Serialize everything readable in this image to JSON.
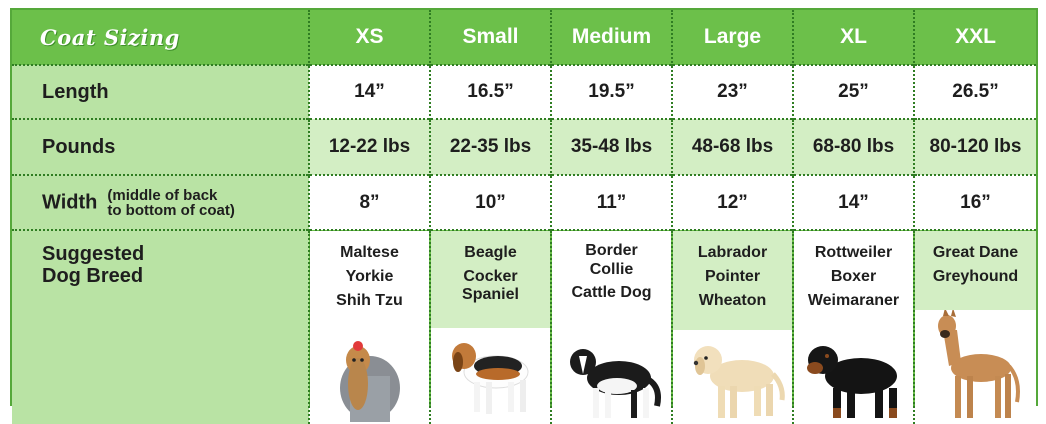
{
  "title": "Coat Sizing",
  "sizes": [
    "XS",
    "Small",
    "Medium",
    "Large",
    "XL",
    "XXL"
  ],
  "rows": {
    "length": {
      "label": "Length",
      "values": [
        "14”",
        "16.5”",
        "19.5”",
        "23”",
        "25”",
        "26.5”"
      ]
    },
    "pounds": {
      "label": "Pounds",
      "values": [
        "12-22 lbs",
        "22-35 lbs",
        "35-48 lbs",
        "48-68 lbs",
        "68-80 lbs",
        "80-120 lbs"
      ]
    },
    "width": {
      "label": "Width",
      "note_line1": "(middle of back",
      "note_line2": "to bottom of coat)",
      "values": [
        "8”",
        "10”",
        "11”",
        "12”",
        "14”",
        "16”"
      ]
    },
    "breed": {
      "label_line1": "Suggested",
      "label_line2": "Dog Breed",
      "breeds": [
        [
          "Maltese",
          "Yorkie",
          "Shih Tzu"
        ],
        [
          "Beagle",
          "Cocker",
          "Spaniel"
        ],
        [
          "Border",
          "Collie",
          "Cattle Dog"
        ],
        [
          "Labrador",
          "Pointer",
          "Wheaton"
        ],
        [
          "Rottweiler",
          "Boxer",
          "Weimaraner"
        ],
        [
          "Great Dane",
          "Greyhound"
        ]
      ],
      "dog_images": [
        "yorkie-photo",
        "beagle-photo",
        "border-collie-photo",
        "labrador-photo",
        "rottweiler-photo",
        "great-dane-photo"
      ]
    }
  },
  "colors": {
    "header_green": "#6cc04a",
    "label_green": "#b9e3a4",
    "light_tint": "#d3eec4",
    "white": "#ffffff"
  }
}
